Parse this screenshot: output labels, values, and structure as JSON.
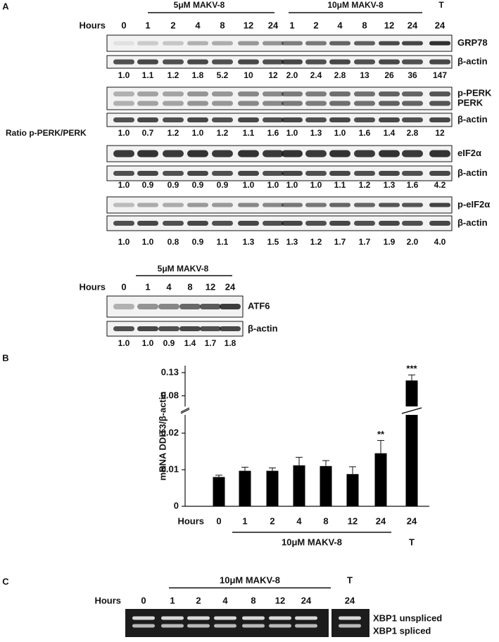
{
  "panel_a": {
    "label": "A",
    "hours_label": "Hours",
    "group_labels": [
      "5μM MAKV-8",
      "10μM MAKV-8",
      "T"
    ],
    "hours": [
      "0",
      "1",
      "2",
      "4",
      "8",
      "12",
      "24",
      "1",
      "2",
      "4",
      "8",
      "12",
      "24",
      "24"
    ],
    "blots": [
      {
        "targets": [
          "GRP78"
        ],
        "loading": "β-actin",
        "ratios": [
          "1.0",
          "1.1",
          "1.2",
          "1.8",
          "5.2",
          "10",
          "12",
          "2.0",
          "2.4",
          "2.8",
          "13",
          "26",
          "36",
          "147"
        ]
      },
      {
        "targets": [
          "p-PERK",
          "PERK"
        ],
        "loading": "β-actin",
        "ratio_label": "Ratio p-PERK/PERK",
        "ratios": [
          "1.0",
          "0.7",
          "1.2",
          "1.0",
          "1.2",
          "1.1",
          "1.6",
          "1.0",
          "1.3",
          "1.0",
          "1.6",
          "1.4",
          "2.8",
          "12"
        ]
      },
      {
        "targets": [
          "eIF2α"
        ],
        "loading": "β-actin",
        "ratios": [
          "1.0",
          "0.9",
          "0.9",
          "0.9",
          "0.9",
          "1.0",
          "1.0",
          "1.0",
          "1.0",
          "1.1",
          "1.2",
          "1.3",
          "1.6",
          "4.2"
        ]
      },
      {
        "targets": [
          "p-eIF2α"
        ],
        "loading": "β-actin",
        "ratios": [
          "1.0",
          "1.0",
          "0.8",
          "0.9",
          "1.1",
          "1.3",
          "1.5",
          "1.3",
          "1.2",
          "1.7",
          "1.7",
          "1.9",
          "2.0",
          "4.0"
        ]
      }
    ],
    "atf6": {
      "group_label": "5μM MAKV-8",
      "hours_label": "Hours",
      "hours": [
        "0",
        "1",
        "4",
        "8",
        "12",
        "24"
      ],
      "blot": {
        "targets": [
          "ATF6"
        ],
        "loading": "β-actin",
        "ratios": [
          "1.0",
          "1.0",
          "0.9",
          "1.4",
          "1.7",
          "1.8"
        ]
      }
    }
  },
  "chart_data": {
    "type": "bar",
    "panel_label": "B",
    "y_label": "mRNA DDIT3/β-actin",
    "hours_label": "Hours",
    "categories": [
      "0",
      "1",
      "2",
      "4",
      "8",
      "12",
      "24",
      "24"
    ],
    "values": [
      0.008,
      0.0097,
      0.0097,
      0.0112,
      0.011,
      0.0088,
      0.0145,
      0.113
    ],
    "errors": [
      0.0005,
      0.001,
      0.0008,
      0.0022,
      0.0015,
      0.002,
      0.0035,
      0.012
    ],
    "color": "#000000",
    "ylim": [
      0,
      0.145
    ],
    "axis_break": [
      0.025,
      0.057
    ],
    "yticks": [
      0,
      0.01,
      0.02,
      0.08,
      0.13
    ],
    "annotations": [
      "**",
      "***"
    ],
    "group_label": "10μM MAKV-8",
    "treatment_label": "T"
  },
  "panel_c": {
    "label": "C",
    "group_label": "10μM MAKV-8",
    "treatment_label": "T",
    "hours_label": "Hours",
    "hours": [
      "0",
      "1",
      "2",
      "4",
      "8",
      "12",
      "24",
      "24"
    ],
    "bands": [
      "XBP1 unspliced",
      "XBP1 spliced"
    ]
  }
}
